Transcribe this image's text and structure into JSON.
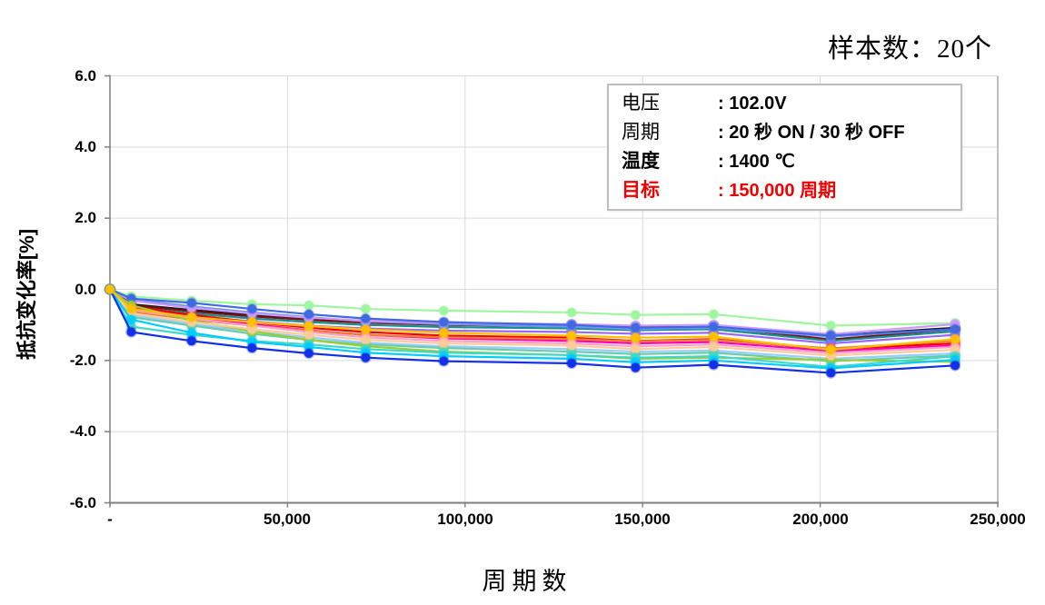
{
  "header": {
    "sample_count": "样本数：20个"
  },
  "legend": {
    "rows": [
      {
        "label": "电压",
        "value": ": 102.0V",
        "style": "normal"
      },
      {
        "label": "周期",
        "value": ": 20 秒 ON / 30 秒 OFF",
        "style": "normal"
      },
      {
        "label": "温度",
        "value": ": 1400 ℃",
        "style": "bold"
      },
      {
        "label": "目标",
        "value": ": 150,000 周期",
        "style": "target"
      }
    ]
  },
  "colors": {
    "target_red": "#f00000",
    "grid": "#dadada",
    "axis": "#7f7f7f",
    "plot_border": "#c0c0c0"
  },
  "chart_data": {
    "type": "line",
    "title": "样本数：20个",
    "xlabel": "周期数",
    "ylabel": "抵抗变化率[%]",
    "xlim": [
      0,
      250000
    ],
    "ylim": [
      -6,
      6
    ],
    "grid": true,
    "legend_position": "none",
    "xtick_values": [
      0,
      50000,
      100000,
      150000,
      200000,
      250000
    ],
    "xtick_labels": [
      "-",
      "50,000",
      "100,000",
      "150,000",
      "200,000",
      "250,000"
    ],
    "ytick_values": [
      6,
      4,
      2,
      0,
      -2,
      -4,
      -6
    ],
    "ytick_labels": [
      "6.0",
      "4.0",
      "2.0",
      "0.0",
      "-2.0",
      "-4.0",
      "-6.0"
    ],
    "x": [
      0,
      6000,
      23000,
      40000,
      56000,
      72000,
      94000,
      130000,
      148000,
      170000,
      203000,
      238000
    ],
    "series": [
      {
        "name": "sample-black",
        "color": "#1a1a1a",
        "values": [
          0,
          -0.42,
          -0.58,
          -0.72,
          -0.82,
          -0.9,
          -0.95,
          -1.0,
          -1.05,
          -1.02,
          -1.3,
          -1.08
        ]
      },
      {
        "name": "sample-maroon",
        "color": "#7f1010",
        "values": [
          0,
          -0.45,
          -0.62,
          -0.76,
          -0.86,
          -0.94,
          -1.0,
          -1.04,
          -1.08,
          -1.05,
          -1.41,
          -1.12
        ]
      },
      {
        "name": "sample-teal",
        "color": "#168f8f",
        "values": [
          0,
          -0.5,
          -0.68,
          -0.82,
          -0.92,
          -1.0,
          -1.06,
          -1.1,
          -1.15,
          -1.12,
          -1.45,
          -1.18
        ]
      },
      {
        "name": "sample-violet",
        "color": "#9966ff",
        "values": [
          0,
          -0.55,
          -0.75,
          -0.9,
          -1.02,
          -1.1,
          -1.16,
          -1.2,
          -1.25,
          -1.22,
          -1.52,
          -1.28
        ]
      },
      {
        "name": "sample-red",
        "color": "#f20000",
        "values": [
          0,
          -0.48,
          -0.72,
          -0.92,
          -1.08,
          -1.2,
          -1.3,
          -1.36,
          -1.45,
          -1.4,
          -1.68,
          -1.52
        ]
      },
      {
        "name": "sample-magenta",
        "color": "#ff00b4",
        "values": [
          0,
          -0.52,
          -0.78,
          -0.98,
          -1.15,
          -1.28,
          -1.38,
          -1.45,
          -1.52,
          -1.48,
          -1.73,
          -1.58
        ]
      },
      {
        "name": "sample-orange",
        "color": "#ed7d31",
        "values": [
          0,
          -0.62,
          -0.85,
          -1.02,
          -1.16,
          -1.28,
          -1.35,
          -1.4,
          -1.46,
          -1.42,
          -1.66,
          -1.45
        ]
      },
      {
        "name": "sample-lightblue",
        "color": "#99ccff",
        "values": [
          0,
          -0.72,
          -0.98,
          -1.18,
          -1.35,
          -1.5,
          -1.6,
          -1.68,
          -1.75,
          -1.72,
          -1.95,
          -1.8
        ]
      },
      {
        "name": "sample-aquamarine",
        "color": "#66cdaa",
        "values": [
          0,
          -0.78,
          -1.02,
          -1.25,
          -1.42,
          -1.55,
          -1.65,
          -1.75,
          -1.82,
          -1.78,
          -2.02,
          -1.86
        ]
      },
      {
        "name": "sample-pink",
        "color": "#ff9ec9",
        "values": [
          0,
          -0.58,
          -0.82,
          -1.02,
          -1.2,
          -1.35,
          -1.45,
          -1.52,
          -1.6,
          -1.55,
          -1.79,
          -1.62
        ]
      },
      {
        "name": "sample-cornflower",
        "color": "#6e94f0",
        "values": [
          0,
          -0.28,
          -0.48,
          -0.65,
          -0.78,
          -0.9,
          -0.98,
          -1.05,
          -1.12,
          -1.08,
          -1.33,
          -1.12
        ]
      },
      {
        "name": "sample-palegreen",
        "color": "#a0f5a0",
        "values": [
          0,
          -0.2,
          -0.32,
          -0.42,
          -0.45,
          -0.55,
          -0.6,
          -0.65,
          -0.72,
          -0.7,
          -1.02,
          -0.95
        ]
      },
      {
        "name": "sample-plum",
        "color": "#cc99ff",
        "values": [
          0,
          -0.32,
          -0.52,
          -0.68,
          -0.8,
          -0.88,
          -0.94,
          -0.98,
          -1.02,
          -1.0,
          -1.26,
          -0.98
        ]
      },
      {
        "name": "sample-royalblue",
        "color": "#4169e1",
        "values": [
          0,
          -0.26,
          -0.38,
          -0.55,
          -0.7,
          -0.82,
          -0.92,
          -1.0,
          -1.08,
          -1.05,
          -1.3,
          -1.12
        ]
      },
      {
        "name": "sample-yellowgreen",
        "color": "#9acd32",
        "values": [
          0,
          -0.45,
          -0.88,
          -1.18,
          -1.42,
          -1.6,
          -1.75,
          -1.85,
          -1.95,
          -1.92,
          -1.98,
          -2.04
        ]
      },
      {
        "name": "sample-peach",
        "color": "#ffcc99",
        "values": [
          0,
          -0.68,
          -0.92,
          -1.12,
          -1.28,
          -1.42,
          -1.52,
          -1.58,
          -1.68,
          -1.62,
          -1.86,
          -1.7
        ]
      },
      {
        "name": "sample-turquoise",
        "color": "#40d8c8",
        "values": [
          0,
          -1.05,
          -1.28,
          -1.45,
          -1.55,
          -1.68,
          -1.78,
          -1.85,
          -1.92,
          -1.88,
          -2.18,
          -1.88
        ]
      },
      {
        "name": "sample-cyan",
        "color": "#00ccff",
        "values": [
          0,
          -0.85,
          -1.22,
          -1.48,
          -1.62,
          -1.78,
          -1.88,
          -1.95,
          -2.05,
          -2.0,
          -2.22,
          -1.98
        ]
      },
      {
        "name": "sample-navy",
        "color": "#1330e8",
        "values": [
          0,
          -1.2,
          -1.45,
          -1.65,
          -1.8,
          -1.92,
          -2.02,
          -2.08,
          -2.2,
          -2.12,
          -2.35,
          -2.14
        ]
      },
      {
        "name": "sample-gold",
        "color": "#ffc000",
        "values": [
          0,
          -0.55,
          -0.78,
          -0.92,
          -1.03,
          -1.13,
          -1.22,
          -1.3,
          -1.36,
          -1.33,
          -1.7,
          -1.4
        ]
      }
    ]
  }
}
